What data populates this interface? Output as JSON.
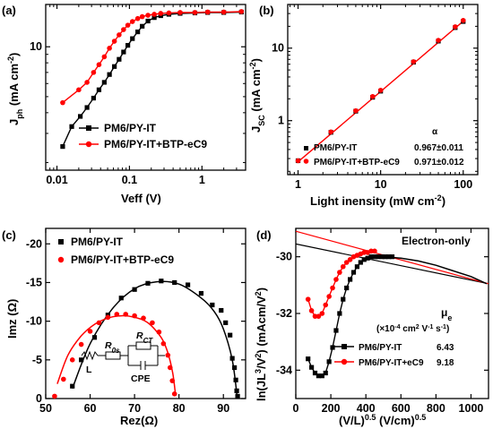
{
  "colors": {
    "black": "#000000",
    "red": "#ff0000"
  },
  "chart_data": [
    {
      "panel": "(a)",
      "type": "line",
      "xscale": "log",
      "yscale": "log",
      "xlabel": "Veff (V)",
      "ylabel": "Jph (mA cm-2)",
      "ylabel_parts": {
        "main": "J",
        "sub": "ph",
        "unit": " (mA cm",
        "sup": "-2",
        "close": ")"
      },
      "xlim": [
        0.007,
        4.0
      ],
      "ylim": [
        1.8,
        18
      ],
      "xticks": [
        {
          "v": 0.01,
          "label": "0.01"
        },
        {
          "v": 0.1,
          "label": "0.1"
        },
        {
          "v": 1,
          "label": "1"
        }
      ],
      "yticks": [
        {
          "v": 10,
          "label": "10"
        }
      ],
      "series": [
        {
          "name": "PM6/PY-IT",
          "color": "#000000",
          "marker": "square",
          "x": [
            0.012,
            0.016,
            0.021,
            0.026,
            0.032,
            0.038,
            0.045,
            0.053,
            0.062,
            0.072,
            0.083,
            0.095,
            0.11,
            0.13,
            0.15,
            0.18,
            0.22,
            0.27,
            0.35,
            0.5,
            0.8,
            1.2,
            2.0,
            3.5
          ],
          "y": [
            2.5,
            3.3,
            3.8,
            4.3,
            4.9,
            5.5,
            6.1,
            6.8,
            7.6,
            8.4,
            9.3,
            10.2,
            11.2,
            12.3,
            13.3,
            14.3,
            15.0,
            15.4,
            15.7,
            15.9,
            16.0,
            16.1,
            16.1,
            16.2
          ]
        },
        {
          "name": "PM6/PY-IT+BTP-eC9",
          "color": "#ff0000",
          "marker": "circle",
          "x": [
            0.012,
            0.02,
            0.026,
            0.032,
            0.038,
            0.045,
            0.053,
            0.062,
            0.072,
            0.083,
            0.095,
            0.11,
            0.13,
            0.15,
            0.18,
            0.22,
            0.27,
            0.35,
            0.5,
            0.8,
            1.2,
            2.0,
            3.5
          ],
          "y": [
            4.6,
            5.5,
            6.1,
            7.0,
            7.8,
            8.7,
            9.8,
            10.8,
            11.8,
            12.7,
            13.5,
            14.2,
            14.8,
            15.2,
            15.5,
            15.7,
            15.9,
            16.0,
            16.1,
            16.1,
            16.2,
            16.2,
            16.3
          ]
        }
      ],
      "legend_position": "bottom-right"
    },
    {
      "panel": "(b)",
      "type": "scatter",
      "xscale": "log",
      "yscale": "log",
      "xlabel": "Light inensity (mW cm-2)",
      "xlabel_parts": {
        "main": "Light inensity (mW cm",
        "sup": "-2",
        "close": ")"
      },
      "ylabel": "JSC (mA cm-2)",
      "ylabel_parts": {
        "main": "J",
        "sub": "SC",
        "unit": " (mA cm",
        "sup": "-2",
        "close": ")"
      },
      "xlim": [
        0.75,
        150
      ],
      "ylim": [
        0.18,
        40
      ],
      "xticks": [
        {
          "v": 1,
          "label": "1"
        },
        {
          "v": 10,
          "label": "10"
        },
        {
          "v": 100,
          "label": "100"
        }
      ],
      "yticks": [
        {
          "v": 1,
          "label": "1"
        },
        {
          "v": 10,
          "label": "10"
        }
      ],
      "series": [
        {
          "name": "PM6/PY-IT",
          "color": "#000000",
          "marker": "square",
          "x": [
            1,
            2.5,
            5,
            8,
            10,
            25,
            50,
            80,
            100
          ],
          "y": [
            0.28,
            0.69,
            1.35,
            2.1,
            2.55,
            6.4,
            12.5,
            19.2,
            23.3
          ]
        },
        {
          "name": "PM6/PY-IT+BTP-eC9",
          "color": "#ff0000",
          "marker": "circle",
          "x": [
            1,
            2.5,
            5,
            8,
            10,
            25,
            50,
            80,
            100
          ],
          "y": [
            0.28,
            0.7,
            1.37,
            2.15,
            2.62,
            6.5,
            12.8,
            19.7,
            24.1
          ]
        }
      ],
      "fit": {
        "color": "#ff0000",
        "x": [
          1,
          100
        ],
        "y": [
          0.27,
          23.5
        ]
      },
      "alpha_header": "α",
      "alpha_values": [
        "0.967±0.011",
        "0.971±0.012"
      ],
      "legend_position": "bottom-right"
    },
    {
      "panel": "(c)",
      "type": "scatter",
      "xlabel": "Rez(Ω)",
      "ylabel": "Imz (Ω)",
      "xlim": [
        50,
        95
      ],
      "ylim": [
        0,
        -22
      ],
      "xticks": [
        50,
        60,
        70,
        80,
        90
      ],
      "yticks": [
        0,
        -5,
        -10,
        -15,
        -20
      ],
      "series": [
        {
          "name": "PM6/PY-IT",
          "color": "#000000",
          "marker": "square",
          "x": [
            56,
            58,
            61,
            64,
            67,
            70,
            73,
            76,
            79,
            82,
            85,
            87.5,
            89.5,
            90.5,
            91.5,
            92,
            92.5,
            92.8,
            93,
            93.2
          ],
          "y": [
            -1.6,
            -5.0,
            -7.9,
            -10.8,
            -13.0,
            -14.1,
            -14.9,
            -15.2,
            -15.0,
            -14.7,
            -13.6,
            -12.1,
            -11.4,
            -9.8,
            -8.2,
            -5.2,
            -4.0,
            -2.4,
            -1.0,
            -0.3
          ]
        },
        {
          "name": "PM6/PY-IT+BTP-eC9",
          "color": "#ff0000",
          "marker": "circle",
          "x": [
            52,
            54,
            56,
            58,
            60,
            62,
            64,
            66,
            68,
            70,
            72,
            74,
            75.5,
            76.5,
            77.5,
            78,
            78.5,
            79
          ],
          "y": [
            -0.3,
            -2.5,
            -5.0,
            -7.0,
            -8.7,
            -9.8,
            -10.5,
            -10.9,
            -10.9,
            -10.7,
            -10.4,
            -9.8,
            -8.6,
            -7.1,
            -5.6,
            -4.0,
            -2.3,
            -0.6
          ]
        }
      ],
      "fits": [
        {
          "color": "#000000",
          "x": [
            56,
            60,
            65,
            70,
            75,
            80,
            85,
            88,
            90,
            92,
            93.1
          ],
          "y": [
            -1.3,
            -7.1,
            -11.6,
            -14.2,
            -15.1,
            -14.8,
            -13.0,
            -11.2,
            -9.0,
            -5.0,
            -0.2
          ]
        },
        {
          "color": "#ff0000",
          "x": [
            52.6,
            55,
            58,
            61,
            64,
            67,
            70,
            73,
            76,
            77.5,
            78.6,
            79.2
          ],
          "y": [
            -1.9,
            -5.6,
            -8.1,
            -9.6,
            -10.4,
            -10.7,
            -10.5,
            -9.8,
            -7.9,
            -5.9,
            -3.3,
            -0.6
          ]
        }
      ],
      "circuit_labels": {
        "rs": "R",
        "rs_sub": "0s",
        "rct": "R",
        "rct_sub": "CT",
        "l": "L",
        "cpe": "CPE"
      },
      "legend_position": "top-left"
    },
    {
      "panel": "(d)",
      "type": "line",
      "xlabel": "(V/L)0.5 (V/cm)0.5",
      "xlabel_parts": {
        "p1": "(V/L)",
        "s1": "0.5",
        "p2": " (V/cm)",
        "s2": "0.5"
      },
      "ylabel": "ln(JL3/V2) (mAcm/V2)",
      "ylabel_parts": {
        "p1": "ln(JL",
        "s1": "3",
        "p2": "/V",
        "s2": "2",
        "p3": ") (mAcm/V",
        "s3": "2",
        "p4": ")"
      },
      "xlim": [
        0,
        1100
      ],
      "ylim": [
        -35,
        -29
      ],
      "xticks": [
        0,
        200,
        400,
        600,
        800,
        1000
      ],
      "yticks": [
        -34,
        -32,
        -30
      ],
      "title_inside": "Electron-only",
      "series": [
        {
          "name": "PM6/PY-IT",
          "color": "#000000",
          "marker": "square",
          "x": [
            70,
            90,
            110,
            130,
            150,
            170,
            190,
            210,
            230,
            250,
            270,
            290,
            310,
            330,
            350,
            370,
            390,
            410,
            430,
            450,
            470,
            490,
            510,
            530,
            550
          ],
          "y": [
            -33.6,
            -33.9,
            -34.1,
            -34.2,
            -34.2,
            -34.1,
            -33.7,
            -33.2,
            -32.6,
            -32.0,
            -31.5,
            -31.1,
            -30.8,
            -30.55,
            -30.35,
            -30.2,
            -30.1,
            -30.05,
            -30.0,
            -30.0,
            -30.0,
            -30.0,
            -30.0,
            -30.0,
            -30.0
          ],
          "mobility": "6.43"
        },
        {
          "name": "PM6/PY-IT+eC9",
          "color": "#ff0000",
          "marker": "circle",
          "x": [
            70,
            90,
            110,
            130,
            150,
            170,
            190,
            210,
            230,
            250,
            270,
            290,
            310,
            330,
            350,
            370,
            390,
            410,
            430,
            450
          ],
          "y": [
            -31.5,
            -31.9,
            -32.1,
            -32.1,
            -32.0,
            -31.7,
            -31.4,
            -31.1,
            -30.8,
            -30.55,
            -30.35,
            -30.2,
            -30.1,
            -30.0,
            -29.95,
            -29.9,
            -29.85,
            -29.85,
            -29.8,
            -29.8
          ]
        }
      ],
      "extra_series": [
        {
          "color": "#000000",
          "marker": "line",
          "x": [
            500,
            600,
            700,
            800,
            900,
            1000,
            1090
          ],
          "y": [
            -30.0,
            -30.05,
            -30.15,
            -30.3,
            -30.5,
            -30.7,
            -30.95
          ]
        }
      ],
      "mobility_header": "μe",
      "mobility_header_parts": {
        "main": "μ",
        "sub": "e"
      },
      "mobility_unit": "(×10-4 cm2 V-1 s-1)",
      "mobility_unit_parts": {
        "a": "(×10",
        "a_sup": "-4",
        "b": " cm",
        "b_sup": "2",
        "c": " V",
        "c_sup": "-1",
        "d": " s",
        "d_sup": "-1",
        "e": ")"
      },
      "mobility_values": [
        "6.43",
        "9.18"
      ],
      "fit_lines": [
        {
          "color": "#000000",
          "x": [
            0,
            1100
          ],
          "y": [
            -29.55,
            -30.95
          ]
        },
        {
          "color": "#ff0000",
          "x": [
            0,
            1100
          ],
          "y": [
            -29.1,
            -30.95
          ]
        }
      ],
      "legend_position": "bottom-right"
    }
  ]
}
